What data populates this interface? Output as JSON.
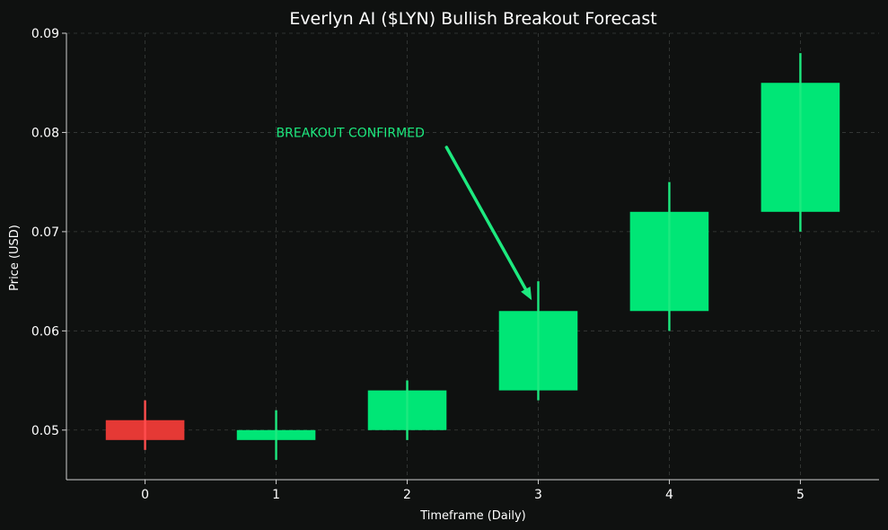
{
  "chart_data": {
    "type": "candlestick",
    "title": "Everlyn AI ($LYN) Bullish Breakout Forecast",
    "xlabel": "Timeframe (Daily)",
    "ylabel": "Price (USD)",
    "xlim": [
      -0.6,
      5.6
    ],
    "ylim": [
      0.045,
      0.09
    ],
    "x_ticks": [
      "0",
      "1",
      "2",
      "3",
      "4",
      "5"
    ],
    "y_ticks": [
      "0.05",
      "0.06",
      "0.07",
      "0.08",
      "0.09"
    ],
    "grid": true,
    "candles": [
      {
        "x": 0,
        "open": 0.051,
        "high": 0.053,
        "low": 0.048,
        "close": 0.049
      },
      {
        "x": 1,
        "open": 0.049,
        "high": 0.052,
        "low": 0.047,
        "close": 0.05
      },
      {
        "x": 2,
        "open": 0.05,
        "high": 0.055,
        "low": 0.049,
        "close": 0.054
      },
      {
        "x": 3,
        "open": 0.054,
        "high": 0.065,
        "low": 0.053,
        "close": 0.062
      },
      {
        "x": 4,
        "open": 0.062,
        "high": 0.075,
        "low": 0.06,
        "close": 0.072
      },
      {
        "x": 5,
        "open": 0.072,
        "high": 0.088,
        "low": 0.07,
        "close": 0.085
      }
    ],
    "annotation": {
      "text": "BREAKOUT CONFIRMED",
      "text_x": 1.0,
      "text_y": 0.08,
      "arrow_from_x": 2.3,
      "arrow_from_y": 0.0785,
      "arrow_to_x": 2.95,
      "arrow_to_y": 0.0631
    },
    "colors": {
      "background": "#0f1110",
      "up": "#00e676",
      "down": "#e53935",
      "wick_up": "#1de97f",
      "wick_down": "#ff4d4d",
      "annotation": "#1de97f",
      "grid": "#3a3d3b",
      "axis": "#cfcfcf",
      "text": "#ffffff"
    }
  }
}
